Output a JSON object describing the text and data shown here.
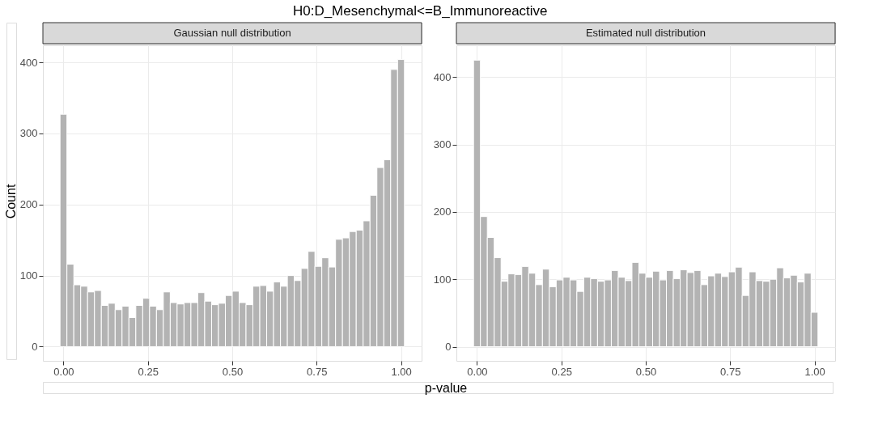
{
  "chart_data": [
    {
      "type": "histogram",
      "title": "H0:D_Mesenchymal<=B_Immunoreactive",
      "subtitle": "Gaussian null distribution",
      "xlabel": "p-value",
      "ylabel": "Count",
      "color": "#b3b3b3",
      "grid": true,
      "bins": [
        -0.0102,
        0.0102,
        0.0306,
        0.051,
        0.0714,
        0.0918,
        0.1122,
        0.1327,
        0.1531,
        0.1735,
        0.1939,
        0.2143,
        0.2347,
        0.2551,
        0.2755,
        0.2959,
        0.3163,
        0.3367,
        0.3571,
        0.3776,
        0.398,
        0.4184,
        0.4388,
        0.4592,
        0.4796,
        0.5,
        0.5204,
        0.5408,
        0.5612,
        0.5816,
        0.602,
        0.6224,
        0.6429,
        0.6633,
        0.6837,
        0.7041,
        0.7245,
        0.7449,
        0.7653,
        0.7857,
        0.8061,
        0.8265,
        0.8469,
        0.8673,
        0.8878,
        0.9082,
        0.9286,
        0.949,
        0.9694,
        0.9898,
        1.0102
      ],
      "values": [
        327,
        116,
        87,
        85,
        77,
        79,
        58,
        61,
        52,
        57,
        41,
        58,
        68,
        57,
        52,
        77,
        62,
        60,
        62,
        62,
        76,
        64,
        59,
        61,
        72,
        78,
        62,
        59,
        85,
        86,
        78,
        91,
        85,
        100,
        93,
        110,
        134,
        113,
        125,
        112,
        151,
        153,
        162,
        164,
        177,
        213,
        252,
        263,
        390,
        404
      ],
      "xlim": [
        -0.061,
        1.061
      ],
      "xticks": [
        {
          "value": 0,
          "label": "0.00"
        },
        {
          "value": 0.25,
          "label": "0.25"
        },
        {
          "value": 0.5,
          "label": "0.50"
        },
        {
          "value": 0.75,
          "label": "0.75"
        },
        {
          "value": 1,
          "label": "1.00"
        }
      ],
      "ylim": [
        -20,
        424
      ],
      "yticks": [
        0,
        100,
        200,
        300,
        400
      ]
    },
    {
      "type": "histogram",
      "subtitle": "Estimated null distribution",
      "color": "#b3b3b3",
      "grid": true,
      "bins": [
        -0.0102,
        0.0102,
        0.0306,
        0.051,
        0.0714,
        0.0918,
        0.1122,
        0.1327,
        0.1531,
        0.1735,
        0.1939,
        0.2143,
        0.2347,
        0.2551,
        0.2755,
        0.2959,
        0.3163,
        0.3367,
        0.3571,
        0.3776,
        0.398,
        0.4184,
        0.4388,
        0.4592,
        0.4796,
        0.5,
        0.5204,
        0.5408,
        0.5612,
        0.5816,
        0.602,
        0.6224,
        0.6429,
        0.6633,
        0.6837,
        0.7041,
        0.7245,
        0.7449,
        0.7653,
        0.7857,
        0.8061,
        0.8265,
        0.8469,
        0.8673,
        0.8878,
        0.9082,
        0.9286,
        0.949,
        0.9694,
        0.9898,
        1.0102
      ],
      "values": [
        425,
        193,
        162,
        132,
        97,
        108,
        107,
        119,
        109,
        92,
        115,
        89,
        99,
        103,
        99,
        82,
        103,
        101,
        97,
        99,
        113,
        103,
        98,
        125,
        109,
        103,
        112,
        99,
        113,
        101,
        114,
        110,
        113,
        92,
        105,
        109,
        104,
        111,
        118,
        76,
        111,
        98,
        97,
        100,
        117,
        102,
        106,
        96,
        109,
        51
      ],
      "xlim": [
        -0.061,
        1.061
      ],
      "xticks": [
        {
          "value": 0,
          "label": "0.00"
        },
        {
          "value": 0.25,
          "label": "0.25"
        },
        {
          "value": 0.5,
          "label": "0.50"
        },
        {
          "value": 0.75,
          "label": "0.75"
        },
        {
          "value": 1,
          "label": "1.00"
        }
      ],
      "ylim": [
        -21,
        447
      ],
      "yticks": [
        0,
        100,
        200,
        300,
        400
      ]
    }
  ]
}
